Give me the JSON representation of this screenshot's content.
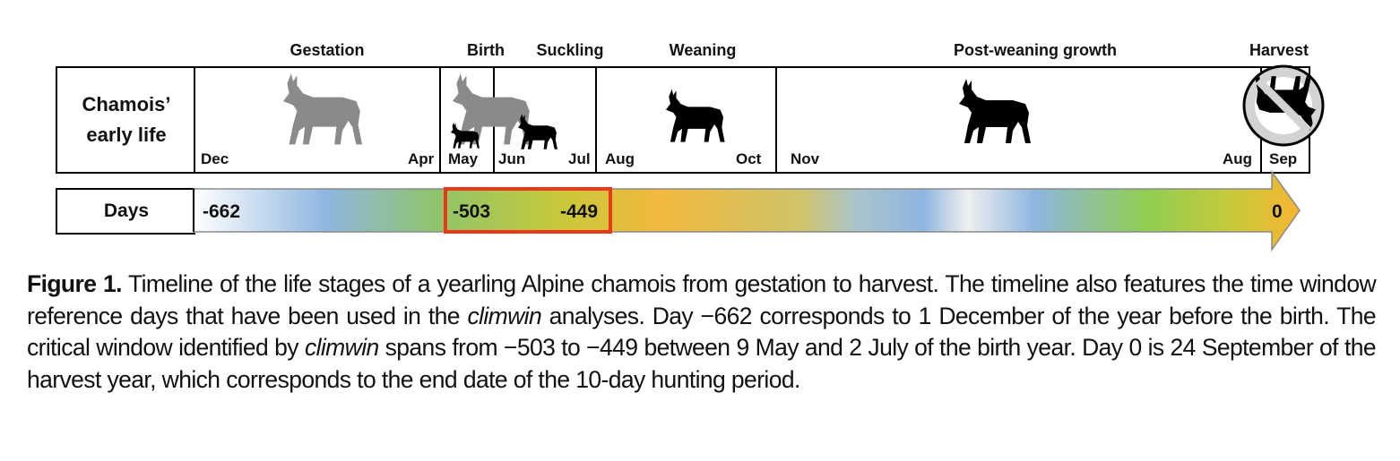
{
  "stages": {
    "gestation": "Gestation",
    "birth": "Birth",
    "suckling": "Suckling",
    "weaning": "Weaning",
    "post_weaning": "Post-weaning growth",
    "harvest": "Harvest"
  },
  "row_titles": {
    "life_line1": "Chamois’",
    "life_line2": "early life",
    "days": "Days"
  },
  "months": {
    "dec": "Dec",
    "apr": "Apr",
    "may": "May",
    "jun": "Jun",
    "jul": "Jul",
    "aug1": "Aug",
    "oct": "Oct",
    "nov": "Nov",
    "aug2": "Aug",
    "sep": "Sep"
  },
  "days": {
    "start": "-662",
    "window_start": "-503",
    "window_end": "-449",
    "end": "0"
  },
  "colors": {
    "critical_window": "#e8391d",
    "adult_gray": "#8a8a8a",
    "silhouette_black": "#000000"
  },
  "icons": [
    "chamois-adult-icon",
    "chamois-kid-icon",
    "chamois-yearling-icon",
    "harvest-forbidden-icon"
  ],
  "caption": {
    "figure_label": "Figure 1.",
    "part1": " Timeline of the life stages of a yearling Alpine chamois from gestation to harvest. The timeline also features the time window reference days that have been used in the ",
    "climwin1": "climwin",
    "part2": " analyses. Day −662 corresponds to 1 December of the year before the birth. The critical window identified by ",
    "climwin2": "climwin",
    "part3": " spans from −503 to −449 between 9 May and 2 July of the birth year. Day 0 is 24 September of the harvest year, which corresponds to the end date of the 10-day hunting period."
  }
}
